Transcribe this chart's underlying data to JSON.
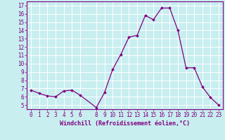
{
  "x": [
    0,
    1,
    2,
    3,
    4,
    5,
    6,
    8,
    9,
    10,
    11,
    12,
    13,
    14,
    15,
    16,
    17,
    18,
    19,
    20,
    21,
    22,
    23
  ],
  "y": [
    6.8,
    6.4,
    6.1,
    6.0,
    6.7,
    6.8,
    6.2,
    4.7,
    6.5,
    9.3,
    11.1,
    13.2,
    13.4,
    15.8,
    15.3,
    16.7,
    16.7,
    14.0,
    9.5,
    9.5,
    7.2,
    5.9,
    5.0
  ],
  "line_color": "#800080",
  "marker_color": "#800080",
  "bg_color": "#c8eef0",
  "grid_color": "#ffffff",
  "text_color": "#800080",
  "xlabel": "Windchill (Refroidissement éolien,°C)",
  "ylim_min": 4.5,
  "ylim_max": 17.5,
  "xlim_min": -0.5,
  "xlim_max": 23.5,
  "yticks": [
    5,
    6,
    7,
    8,
    9,
    10,
    11,
    12,
    13,
    14,
    15,
    16,
    17
  ],
  "xticks": [
    0,
    1,
    2,
    3,
    4,
    5,
    6,
    8,
    9,
    10,
    11,
    12,
    13,
    14,
    15,
    16,
    17,
    18,
    19,
    20,
    21,
    22,
    23
  ],
  "tick_fontsize": 5.5,
  "xlabel_fontsize": 6.0
}
